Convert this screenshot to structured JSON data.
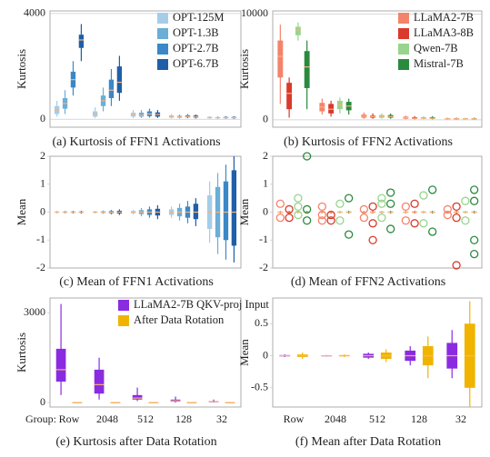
{
  "chart_data": [
    {
      "type": "box",
      "title": "(a) Kurtosis of FFN1 Activations",
      "ylabel": "Kurtosis",
      "categories": [
        null,
        null,
        null,
        null,
        null
      ],
      "ylim": [
        -300,
        4100
      ],
      "yticks": [
        0,
        4000
      ],
      "grid": true,
      "legend": "top-right",
      "series": [
        {
          "name": "OPT-125M",
          "color": "#a6cde8",
          "values": [
            [
              100,
              200,
              350,
              500,
              700
            ],
            [
              50,
              100,
              200,
              300,
              450
            ],
            [
              50,
              100,
              180,
              250,
              350
            ],
            [
              30,
              60,
              100,
              150,
              200
            ],
            [
              20,
              40,
              60,
              90,
              120
            ]
          ]
        },
        {
          "name": "OPT-1.3B",
          "color": "#6baed6",
          "values": [
            [
              200,
              400,
              600,
              800,
              1100
            ],
            [
              300,
              500,
              700,
              900,
              1200
            ],
            [
              50,
              100,
              150,
              250,
              350
            ],
            [
              30,
              60,
              90,
              130,
              180
            ],
            [
              20,
              40,
              60,
              80,
              110
            ]
          ]
        },
        {
          "name": "OPT-2.7B",
          "color": "#3a88c8",
          "values": [
            [
              900,
              1200,
              1500,
              1800,
              2200
            ],
            [
              500,
              800,
              1100,
              1500,
              1900
            ],
            [
              60,
              120,
              200,
              300,
              400
            ],
            [
              40,
              70,
              100,
              150,
              200
            ],
            [
              20,
              40,
              60,
              90,
              120
            ]
          ]
        },
        {
          "name": "OPT-6.7B",
          "color": "#1f5fa8",
          "values": [
            [
              2200,
              2700,
              3000,
              3200,
              3600
            ],
            [
              700,
              1000,
              1400,
              2000,
              2400
            ],
            [
              50,
              100,
              180,
              260,
              350
            ],
            [
              30,
              60,
              90,
              140,
              180
            ],
            [
              20,
              40,
              60,
              90,
              110
            ]
          ]
        }
      ]
    },
    {
      "type": "box",
      "title": "(b) Kurtosis of FFN2 Activations",
      "ylabel": "Kurtosis",
      "categories": [
        null,
        null,
        null,
        null,
        null
      ],
      "ylim": [
        -700,
        10300
      ],
      "yticks": [
        0,
        10000
      ],
      "grid": true,
      "legend": "top-right",
      "series": [
        {
          "name": "LLaMA2-7B",
          "color": "#f4836b",
          "values": [
            [
              1500,
              4000,
              6000,
              7500,
              9000
            ],
            [
              500,
              800,
              1200,
              1600,
              2000
            ],
            [
              100,
              200,
              350,
              500,
              700
            ],
            [
              50,
              100,
              200,
              300,
              400
            ],
            [
              30,
              60,
              100,
              150,
              200
            ]
          ]
        },
        {
          "name": "LLaMA3-8B",
          "color": "#d93a2b",
          "values": [
            [
              200,
              1000,
              2500,
              3500,
              4000
            ],
            [
              300,
              600,
              1000,
              1500,
              1800
            ],
            [
              100,
              200,
              300,
              400,
              600
            ],
            [
              50,
              100,
              150,
              250,
              350
            ],
            [
              30,
              60,
              100,
              150,
              200
            ]
          ]
        },
        {
          "name": "Qwen-7B",
          "color": "#98d48e",
          "values": [
            [
              7500,
              8000,
              8500,
              8800,
              9200
            ],
            [
              600,
              1000,
              1400,
              1800,
              2100
            ],
            [
              100,
              200,
              300,
              450,
              600
            ],
            [
              50,
              100,
              150,
              250,
              350
            ],
            [
              30,
              60,
              100,
              150,
              200
            ]
          ]
        },
        {
          "name": "Mistral-7B",
          "color": "#2a8a3e",
          "values": [
            [
              1000,
              3000,
              5000,
              6500,
              7500
            ],
            [
              500,
              900,
              1300,
              1700,
              2000
            ],
            [
              100,
              200,
              300,
              450,
              600
            ],
            [
              50,
              100,
              150,
              250,
              350
            ],
            [
              30,
              60,
              100,
              150,
              200
            ]
          ]
        }
      ]
    },
    {
      "type": "box",
      "title": "(c) Mean of FFN1 Activations",
      "ylabel": "Mean",
      "categories": [
        null,
        null,
        null,
        null,
        null
      ],
      "ylim": [
        -2,
        2
      ],
      "yticks": [
        -2,
        -1,
        0,
        1,
        2
      ],
      "grid": false,
      "series": [
        {
          "color": "#a6cde8",
          "values": [
            [
              -0.05,
              -0.02,
              0,
              0.02,
              0.05
            ],
            [
              -0.05,
              -0.02,
              0,
              0.02,
              0.05
            ],
            [
              -0.08,
              -0.04,
              0,
              0.04,
              0.08
            ],
            [
              -0.2,
              -0.1,
              0,
              0.1,
              0.2
            ],
            [
              -1.1,
              -0.6,
              0,
              0.6,
              1.1
            ]
          ]
        },
        {
          "color": "#6baed6",
          "values": [
            [
              -0.05,
              -0.02,
              0,
              0.02,
              0.05
            ],
            [
              -0.06,
              -0.03,
              0,
              0.03,
              0.06
            ],
            [
              -0.15,
              -0.07,
              0,
              0.07,
              0.15
            ],
            [
              -0.3,
              -0.15,
              0,
              0.15,
              0.3
            ],
            [
              -1.5,
              -0.9,
              0,
              0.9,
              1.4
            ]
          ]
        },
        {
          "color": "#3a88c8",
          "values": [
            [
              -0.05,
              -0.02,
              0,
              0.02,
              0.05
            ],
            [
              -0.08,
              -0.04,
              0,
              0.04,
              0.08
            ],
            [
              -0.2,
              -0.1,
              0,
              0.1,
              0.2
            ],
            [
              -0.4,
              -0.2,
              0,
              0.2,
              0.4
            ],
            [
              -1.7,
              -1,
              0,
              1.1,
              1.7
            ]
          ]
        },
        {
          "color": "#1f5fa8",
          "values": [
            [
              -0.05,
              -0.02,
              0,
              0.02,
              0.05
            ],
            [
              -0.1,
              -0.05,
              0,
              0.05,
              0.1
            ],
            [
              -0.25,
              -0.12,
              0,
              0.12,
              0.25
            ],
            [
              -0.5,
              -0.25,
              0,
              0.3,
              0.5
            ],
            [
              -1.8,
              -1.2,
              0,
              1.5,
              2
            ]
          ]
        }
      ]
    },
    {
      "type": "box",
      "title": "(d) Mean of FFN2 Activations",
      "ylabel": "Mean",
      "categories": [
        null,
        null,
        null,
        null,
        null
      ],
      "ylim": [
        -2,
        2
      ],
      "yticks": [
        -2,
        -1,
        0,
        1,
        2
      ],
      "grid": false,
      "series": [
        {
          "color": "#f4836b",
          "values": [
            [
              -0.05,
              -0.02,
              0,
              0.02,
              0.05
            ],
            [
              -0.05,
              -0.02,
              0,
              0.02,
              0.05
            ],
            [
              -0.05,
              -0.02,
              0,
              0.02,
              0.05
            ],
            [
              -0.05,
              -0.02,
              0,
              0.02,
              0.05
            ],
            [
              -0.05,
              -0.02,
              0,
              0.02,
              0.05
            ]
          ],
          "outliers": [
            [
              0.3,
              -0.2
            ],
            [
              0.2,
              -0.1,
              -0.3
            ],
            [
              0.1,
              -0.2
            ],
            [
              0.2,
              -0.3
            ],
            [
              0.1,
              -0.1
            ]
          ]
        },
        {
          "color": "#d93a2b",
          "values": [
            [
              -0.05,
              -0.02,
              0,
              0.02,
              0.05
            ],
            [
              -0.05,
              -0.02,
              0,
              0.02,
              0.05
            ],
            [
              -0.05,
              -0.02,
              0,
              0.02,
              0.05
            ],
            [
              -0.05,
              -0.02,
              0,
              0.02,
              0.05
            ],
            [
              -0.05,
              -0.02,
              0,
              0.02,
              0.05
            ]
          ],
          "outliers": [
            [
              -0.2,
              0.1
            ],
            [
              -0.1,
              -0.3
            ],
            [
              0.2,
              -0.4,
              -1
            ],
            [
              -0.4,
              0.3
            ],
            [
              -0.2,
              0.2,
              -1.9
            ]
          ]
        },
        {
          "color": "#98d48e",
          "values": [
            [
              -0.05,
              -0.02,
              0,
              0.02,
              0.05
            ],
            [
              -0.05,
              -0.02,
              0,
              0.02,
              0.05
            ],
            [
              -0.05,
              -0.02,
              0,
              0.02,
              0.05
            ],
            [
              -0.05,
              -0.02,
              0,
              0.02,
              0.05
            ],
            [
              -0.05,
              -0.02,
              0,
              0.02,
              0.05
            ]
          ],
          "outliers": [
            [
              0.5,
              0.2,
              -0.1
            ],
            [
              0.3,
              -0.3
            ],
            [
              0.5,
              -0.2,
              0.3
            ],
            [
              0.6,
              -0.4
            ],
            [
              0.4,
              -0.3
            ]
          ]
        },
        {
          "color": "#2a8a3e",
          "values": [
            [
              -0.05,
              -0.02,
              0,
              0.02,
              0.05
            ],
            [
              -0.05,
              -0.02,
              0,
              0.02,
              0.05
            ],
            [
              -0.05,
              -0.02,
              0,
              0.02,
              0.05
            ],
            [
              -0.05,
              -0.02,
              0,
              0.02,
              0.05
            ],
            [
              -0.05,
              -0.02,
              0,
              0.02,
              0.05
            ]
          ],
          "outliers": [
            [
              2,
              -0.3,
              0.1
            ],
            [
              0.5,
              -0.8
            ],
            [
              0.7,
              -0.6,
              0.3
            ],
            [
              0.8,
              -0.7
            ],
            [
              0.8,
              -1,
              -1.5,
              0.4
            ]
          ]
        }
      ]
    },
    {
      "type": "box",
      "title": "(e) Kurtosis after Data Rotation",
      "ylabel": "Kurtosis",
      "xlabel": "Group:",
      "categories": [
        "Row",
        "2048",
        "512",
        "128",
        "32"
      ],
      "ylim": [
        -150,
        3500
      ],
      "yticks": [
        0,
        3000
      ],
      "grid": false,
      "legend": "top-right",
      "series": [
        {
          "name": "LLaMA2-7B QKV-proj Input",
          "color": "#8a2be2",
          "values": [
            [
              250,
              700,
              1100,
              1800,
              3300
            ],
            [
              100,
              300,
              600,
              1100,
              1500
            ],
            [
              50,
              100,
              150,
              250,
              500
            ],
            [
              0,
              30,
              60,
              100,
              200
            ],
            [
              0,
              10,
              30,
              50,
              100
            ]
          ]
        },
        {
          "name": "After Data Rotation",
          "color": "#f0b400",
          "values": [
            [
              -10,
              -5,
              0,
              5,
              10
            ],
            [
              -10,
              -5,
              0,
              5,
              10
            ],
            [
              -10,
              -5,
              0,
              5,
              10
            ],
            [
              -10,
              -5,
              0,
              5,
              10
            ],
            [
              -10,
              -5,
              0,
              5,
              10
            ]
          ]
        }
      ]
    },
    {
      "type": "box",
      "title": "(f) Mean after Data Rotation",
      "ylabel": "Mean",
      "categories": [
        "Row",
        "2048",
        "512",
        "128",
        "32"
      ],
      "ylim": [
        -0.8,
        0.9
      ],
      "yticks": [
        -0.5,
        0,
        0.5
      ],
      "grid": false,
      "series": [
        {
          "color": "#8a2be2",
          "values": [
            [
              -0.02,
              -0.01,
              0,
              0.01,
              0.02
            ],
            [
              -0.01,
              -0.005,
              0,
              0.005,
              0.01
            ],
            [
              -0.05,
              -0.03,
              0,
              0.03,
              0.05
            ],
            [
              -0.15,
              -0.08,
              0,
              0.08,
              0.15
            ],
            [
              -0.35,
              -0.2,
              0,
              0.2,
              0.4
            ]
          ]
        },
        {
          "color": "#f0b400",
          "values": [
            [
              -0.05,
              -0.02,
              0,
              0.02,
              0.05
            ],
            [
              -0.02,
              -0.01,
              0,
              0.01,
              0.02
            ],
            [
              -0.1,
              -0.05,
              0,
              0.05,
              0.1
            ],
            [
              -0.35,
              -0.15,
              0,
              0.15,
              0.3
            ],
            [
              -0.8,
              -0.5,
              0,
              0.5,
              0.85
            ]
          ]
        }
      ]
    }
  ]
}
